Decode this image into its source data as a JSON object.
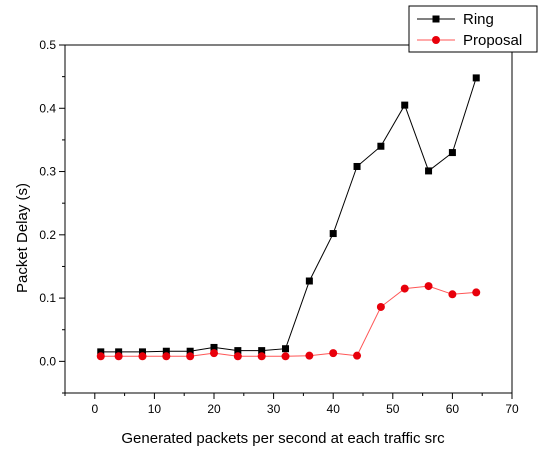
{
  "chart_data": {
    "type": "line",
    "xlabel": "Generated packets per second at each traffic src",
    "ylabel": "Packet Delay (s)",
    "xlim": [
      -5,
      70
    ],
    "ylim": [
      -0.05,
      0.5
    ],
    "xticks": [
      0,
      10,
      20,
      30,
      40,
      50,
      60,
      70
    ],
    "yticks": [
      0.0,
      0.1,
      0.2,
      0.3,
      0.4,
      0.5
    ],
    "xtick_labels": [
      "0",
      "10",
      "20",
      "30",
      "40",
      "50",
      "60",
      "70"
    ],
    "ytick_labels": [
      "0.0",
      "0.1",
      "0.2",
      "0.3",
      "0.4",
      "0.5"
    ],
    "grid": false,
    "legend": "top-right",
    "series": [
      {
        "name": "Ring",
        "marker": "square",
        "color": "#000000",
        "line_color": "#000000",
        "x": [
          1,
          4,
          8,
          12,
          16,
          20,
          24,
          28,
          32,
          36,
          40,
          44,
          48,
          52,
          56,
          60,
          64
        ],
        "y": [
          0.015,
          0.015,
          0.015,
          0.016,
          0.016,
          0.022,
          0.017,
          0.017,
          0.02,
          0.127,
          0.202,
          0.308,
          0.34,
          0.405,
          0.301,
          0.33,
          0.448
        ]
      },
      {
        "name": "Proposal",
        "marker": "circle",
        "color": "#e8000b",
        "line_color": "#ff5555",
        "x": [
          1,
          4,
          8,
          12,
          16,
          20,
          24,
          28,
          32,
          36,
          40,
          44,
          48,
          52,
          56,
          60,
          64
        ],
        "y": [
          0.008,
          0.008,
          0.008,
          0.008,
          0.008,
          0.013,
          0.008,
          0.008,
          0.008,
          0.009,
          0.013,
          0.009,
          0.086,
          0.115,
          0.119,
          0.106,
          0.109
        ]
      }
    ]
  }
}
